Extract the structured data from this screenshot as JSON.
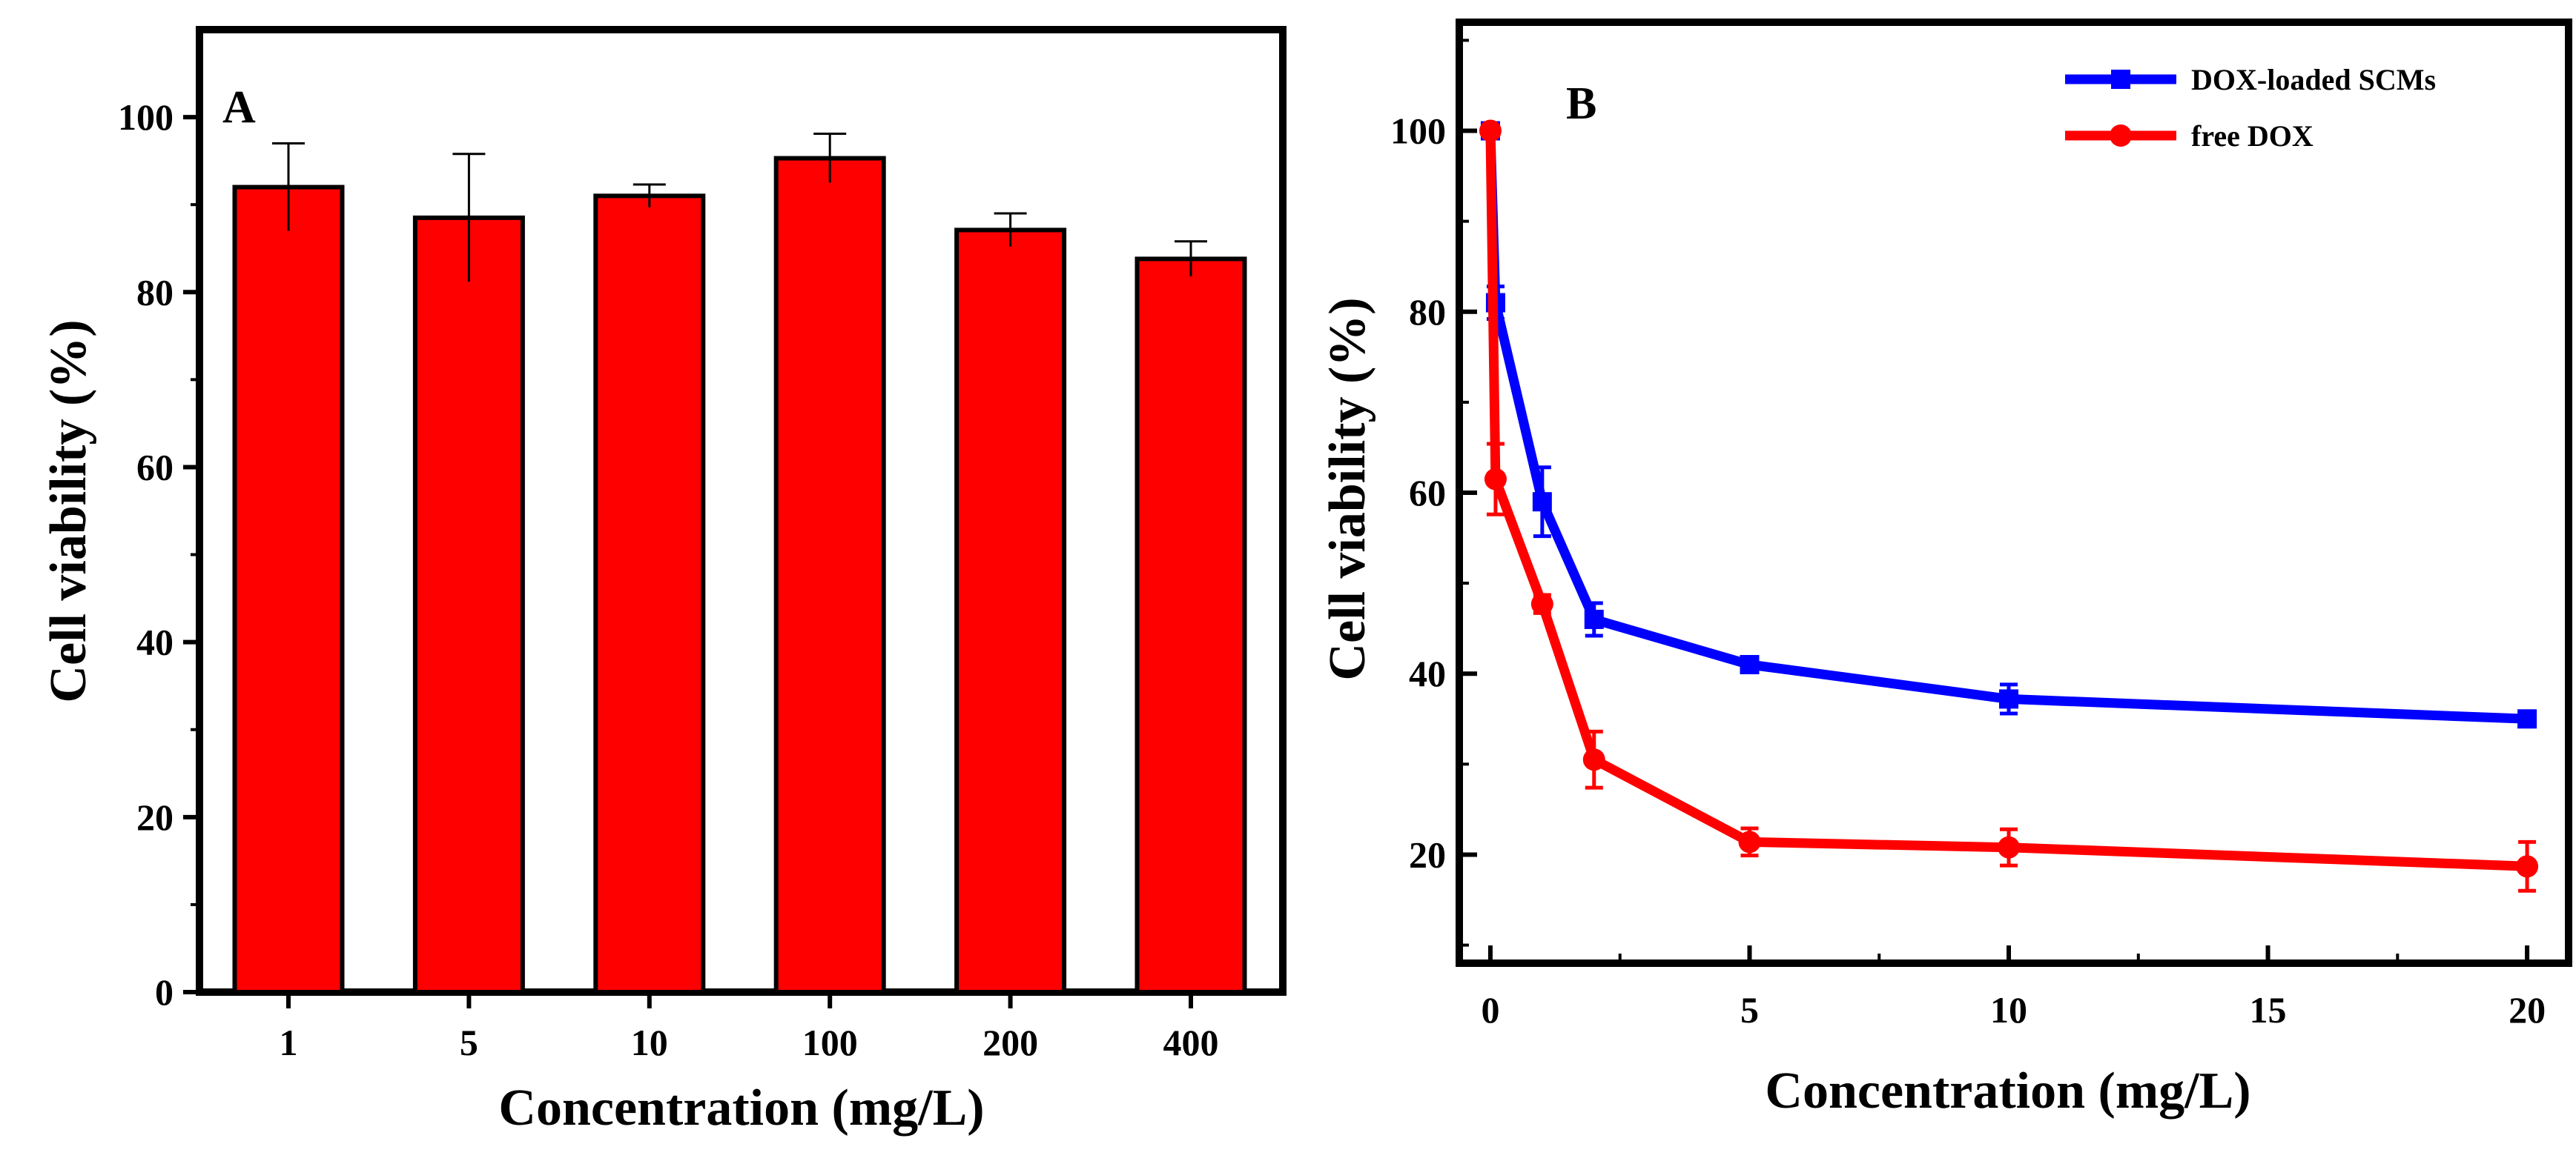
{
  "chart_data": [
    {
      "panel_label": "A",
      "type": "bar",
      "categories": [
        "1",
        "5",
        "10",
        "100",
        "200",
        "400"
      ],
      "values": [
        92,
        88.5,
        91,
        95.3,
        87.1,
        83.8
      ],
      "errors": [
        5.0,
        7.3,
        1.3,
        2.8,
        1.9,
        2.0
      ],
      "bar_color": "#ff0000",
      "xlabel": "Concentration (mg/L)",
      "ylabel": "Cell viability (%)",
      "ylim": [
        0,
        110
      ],
      "yticks": [
        "0",
        "20",
        "40",
        "60",
        "80",
        "100"
      ]
    },
    {
      "panel_label": "B",
      "type": "line",
      "x": [
        0,
        0.1,
        1,
        2,
        5,
        10,
        20
      ],
      "series": [
        {
          "name": "DOX-loaded SCMs",
          "color": "#0000ff",
          "marker": "square",
          "values": [
            100,
            81,
            59,
            46,
            41,
            37.2,
            35
          ],
          "errors": [
            0.5,
            1.8,
            3.8,
            1.8,
            0.8,
            1.6,
            0.8
          ]
        },
        {
          "name": "free DOX",
          "color": "#ff0000",
          "marker": "circle",
          "values": [
            100,
            61.5,
            47.7,
            30.5,
            21.4,
            20.8,
            18.7
          ],
          "errors": [
            0.5,
            3.9,
            1.0,
            3.1,
            1.5,
            2.0,
            2.7
          ]
        }
      ],
      "xlabel": "Concentration (mg/L)",
      "ylabel": "Cell viability (%)",
      "xlim": [
        -0.6,
        20.8
      ],
      "ylim": [
        8,
        112
      ],
      "xticks": [
        "0",
        "5",
        "10",
        "15",
        "20"
      ],
      "yticks": [
        "20",
        "40",
        "60",
        "80",
        "100"
      ]
    }
  ]
}
